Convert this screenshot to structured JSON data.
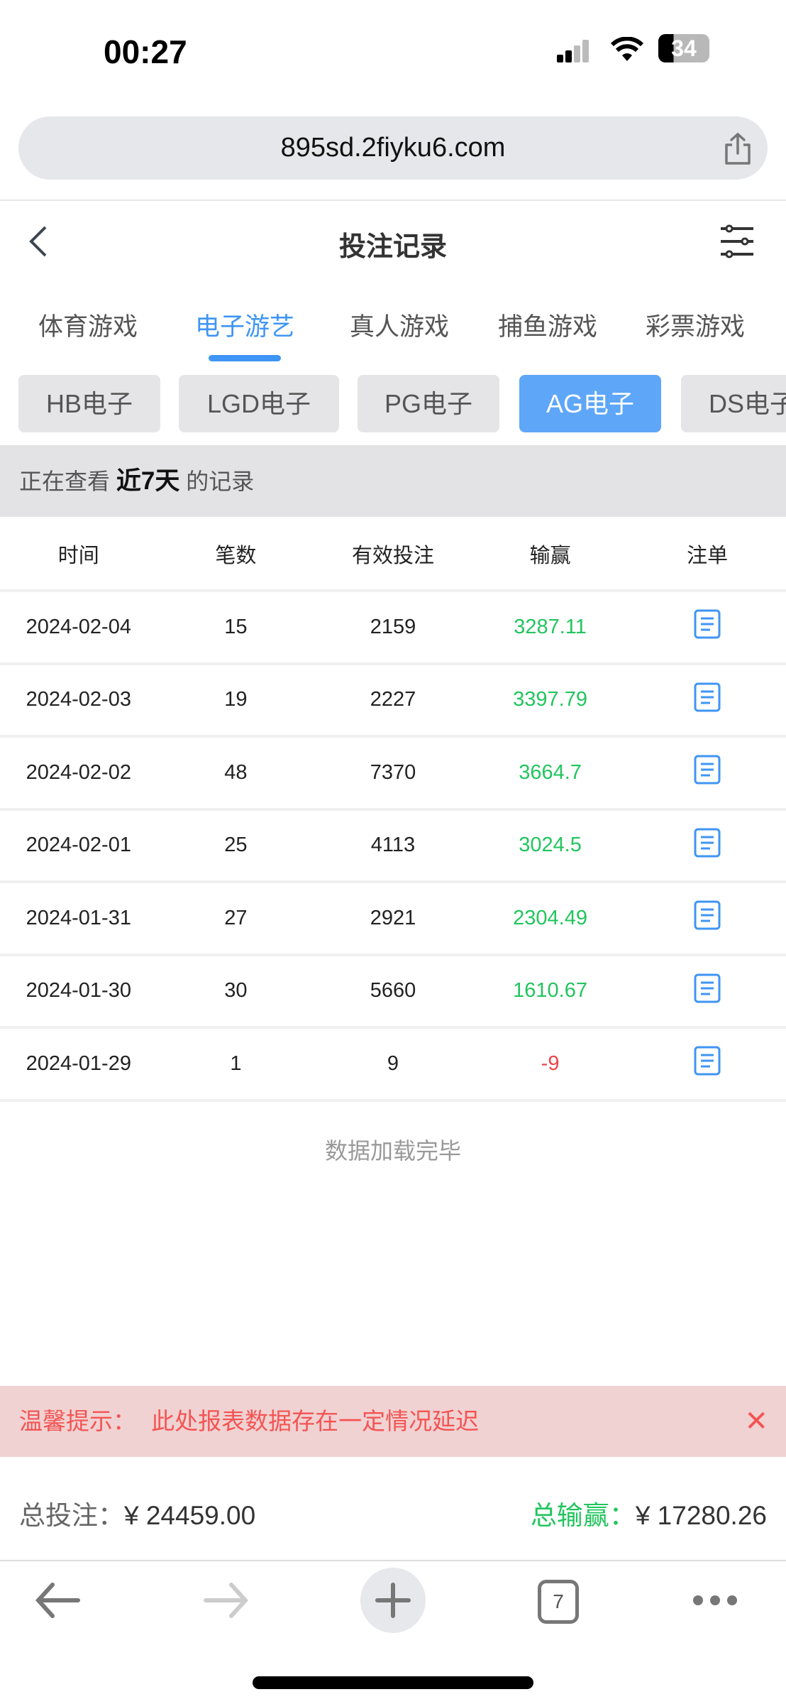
{
  "status": {
    "time": "00:27",
    "battery": "34"
  },
  "browser": {
    "url": "895sd.2fiyku6.com",
    "tabs_count": "7"
  },
  "header": {
    "title": "投注记录"
  },
  "tabs": [
    {
      "label": "体育游戏"
    },
    {
      "label": "电子游艺",
      "active": true
    },
    {
      "label": "真人游戏"
    },
    {
      "label": "捕鱼游戏"
    },
    {
      "label": "彩票游戏"
    }
  ],
  "chips": [
    {
      "label": "HB电子"
    },
    {
      "label": "LGD电子"
    },
    {
      "label": "PG电子"
    },
    {
      "label": "AG电子",
      "active": true
    },
    {
      "label": "DS电子"
    }
  ],
  "range": {
    "prefix": "正在查看",
    "value": "近7天",
    "suffix": "的记录"
  },
  "table": {
    "headers": [
      "时间",
      "笔数",
      "有效投注",
      "输赢",
      "注单"
    ],
    "rows": [
      {
        "date": "2024-02-04",
        "count": "15",
        "bet": "2159",
        "win": "3287.11"
      },
      {
        "date": "2024-02-03",
        "count": "19",
        "bet": "2227",
        "win": "3397.79"
      },
      {
        "date": "2024-02-02",
        "count": "48",
        "bet": "7370",
        "win": "3664.7"
      },
      {
        "date": "2024-02-01",
        "count": "25",
        "bet": "4113",
        "win": "3024.5"
      },
      {
        "date": "2024-01-31",
        "count": "27",
        "bet": "2921",
        "win": "2304.49"
      },
      {
        "date": "2024-01-30",
        "count": "30",
        "bet": "5660",
        "win": "1610.67"
      },
      {
        "date": "2024-01-29",
        "count": "1",
        "bet": "9",
        "win": "-9"
      }
    ]
  },
  "loaded_text": "数据加载完毕",
  "notice": {
    "label": "温馨提示：",
    "text": "此处报表数据存在一定情况延迟"
  },
  "totals": {
    "bet_label": "总投注：",
    "bet_value": "¥ 24459.00",
    "win_label": "总输赢：",
    "win_value": "¥ 17280.26"
  },
  "colors": {
    "accent": "#3f95f5",
    "positive": "#22c55e",
    "negative": "#f0434a"
  }
}
